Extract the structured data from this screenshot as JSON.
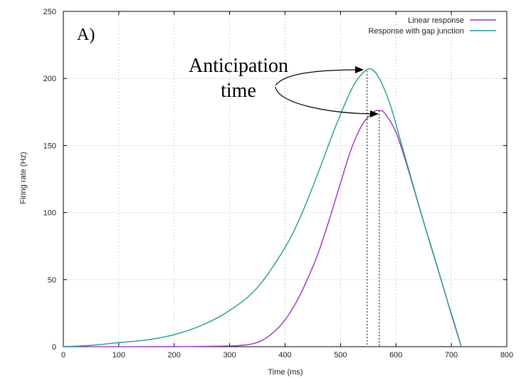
{
  "chart_data": {
    "type": "line",
    "panel_label": "A)",
    "xlabel": "Time (ms)",
    "ylabel": "Firing rate (Hz)",
    "xlim": [
      0,
      800
    ],
    "ylim": [
      0,
      250
    ],
    "xticks": [
      0,
      100,
      200,
      300,
      400,
      500,
      600,
      700,
      800
    ],
    "yticks": [
      0,
      50,
      100,
      150,
      200,
      250
    ],
    "grid": true,
    "legend_position": "top-right",
    "annotation": {
      "line1": "Anticipation",
      "line2": "time",
      "peak_times": [
        548,
        570
      ]
    },
    "series": [
      {
        "name": "Linear response",
        "color": "#9b30c8",
        "x": [
          0,
          200,
          300,
          320,
          340,
          360,
          380,
          400,
          420,
          440,
          460,
          480,
          500,
          520,
          540,
          560,
          570,
          580,
          600,
          620,
          640,
          660,
          680,
          700,
          718
        ],
        "y": [
          0,
          0,
          0.5,
          1,
          2,
          5,
          11,
          20,
          33,
          50,
          70,
          95,
          122,
          148,
          166,
          175,
          176,
          174,
          160,
          135,
          107,
          79,
          52,
          24,
          0
        ]
      },
      {
        "name": "Response with gap junction",
        "color": "#1a9f8c",
        "x": [
          0,
          50,
          100,
          150,
          200,
          250,
          300,
          350,
          400,
          430,
          460,
          490,
          520,
          540,
          555,
          570,
          590,
          610,
          630,
          650,
          670,
          690,
          705,
          718
        ],
        "y": [
          0,
          1,
          3,
          5,
          9,
          16,
          27,
          44,
          74,
          99,
          130,
          163,
          192,
          204,
          207,
          200,
          180,
          151,
          122,
          93,
          66,
          38,
          18,
          0
        ]
      }
    ]
  }
}
